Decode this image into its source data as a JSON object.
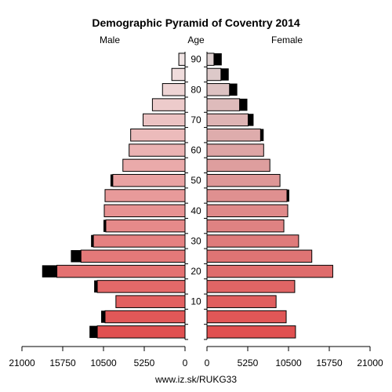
{
  "chart_data": {
    "type": "bar",
    "title": "Demographic Pyramid of Coventry 2014",
    "left_label": "Male",
    "center_label": "Age",
    "right_label": "Female",
    "footer": "www.iz.sk/RUKG33",
    "age_groups": [
      "0-4",
      "5-9",
      "10-14",
      "15-19",
      "20-24",
      "25-29",
      "30-34",
      "35-39",
      "40-44",
      "45-49",
      "50-54",
      "55-59",
      "60-64",
      "65-69",
      "70-74",
      "75-79",
      "80-84",
      "85-89",
      "90+"
    ],
    "age_ticks": [
      10,
      20,
      30,
      40,
      50,
      60,
      70,
      80,
      90
    ],
    "x_ticks": [
      21000,
      15750,
      10500,
      5250,
      0,
      5250,
      10500,
      15750,
      21000
    ],
    "xlim": [
      0,
      21000
    ],
    "male_native": [
      11300,
      10300,
      8900,
      11300,
      16500,
      13400,
      11800,
      10200,
      10400,
      10300,
      9300,
      8000,
      7200,
      7000,
      5400,
      4200,
      2900,
      1700,
      800
    ],
    "male_foreign": [
      1000,
      500,
      0,
      400,
      1900,
      1300,
      300,
      300,
      0,
      0,
      300,
      0,
      0,
      0,
      0,
      0,
      0,
      0,
      0
    ],
    "female_native": [
      11400,
      10200,
      8900,
      11300,
      16200,
      13500,
      11800,
      9900,
      10400,
      10300,
      9400,
      8100,
      7300,
      6900,
      5300,
      4200,
      2900,
      1800,
      900
    ],
    "female_foreign": [
      0,
      0,
      0,
      0,
      0,
      0,
      0,
      0,
      0,
      300,
      0,
      0,
      0,
      400,
      700,
      1000,
      1000,
      1000,
      1000
    ],
    "colors": {
      "foreign": "#000000",
      "stroke": "#000000",
      "male_young": "#e05050",
      "male_old": "#f0e4e4",
      "female_young": "#e05050",
      "female_old": "#ddd0d0"
    }
  }
}
